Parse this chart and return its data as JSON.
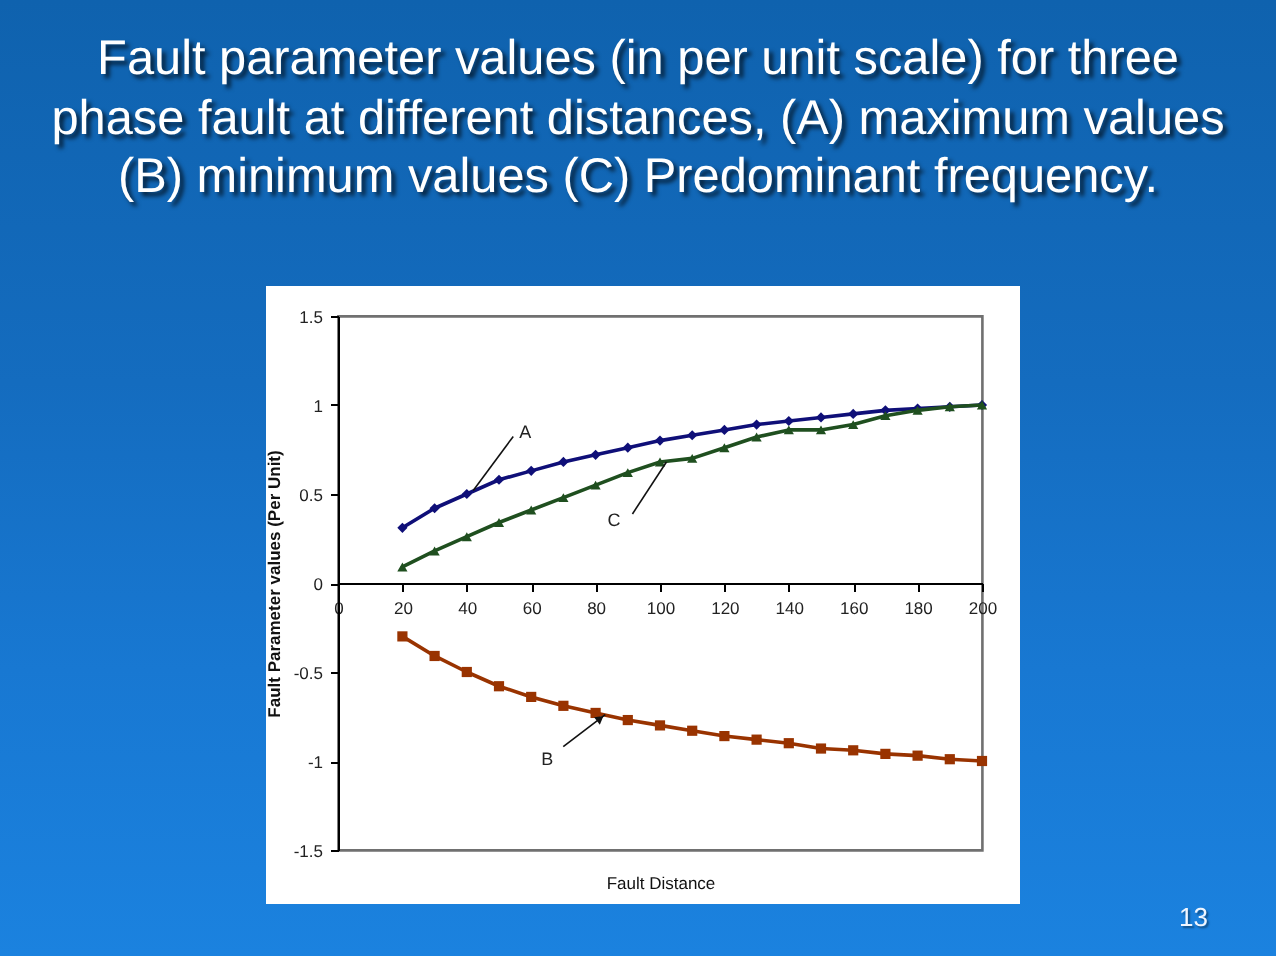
{
  "chart_data": {
    "type": "line",
    "title": "Fault parameter values (in per unit scale) for three phase fault at different distances, (A) maximum values (B) minimum values (C) Predominant frequency.",
    "xlabel": "Fault Distance",
    "ylabel": "Fault Parameter values (Per Unit)",
    "x": [
      20,
      30,
      40,
      50,
      60,
      70,
      80,
      90,
      100,
      110,
      120,
      130,
      140,
      150,
      160,
      170,
      180,
      190,
      200
    ],
    "series": [
      {
        "color": "#0f0f78",
        "marker": "diamond",
        "values": [
          0.31,
          0.42,
          0.5,
          0.58,
          0.63,
          0.68,
          0.72,
          0.76,
          0.8,
          0.83,
          0.86,
          0.89,
          0.91,
          0.93,
          0.95,
          0.97,
          0.98,
          0.99,
          1.0
        ]
      },
      {
        "color": "#993300",
        "marker": "square",
        "values": [
          -0.3,
          -0.41,
          -0.5,
          -0.58,
          -0.64,
          -0.69,
          -0.73,
          -0.77,
          -0.8,
          -0.83,
          -0.86,
          -0.88,
          -0.9,
          -0.93,
          -0.94,
          -0.96,
          -0.97,
          -0.99,
          -1.0
        ]
      },
      {
        "color": "#1f4f1f",
        "marker": "triangle",
        "values": [
          0.09,
          0.18,
          0.26,
          0.34,
          0.41,
          0.48,
          0.55,
          0.62,
          0.68,
          0.7,
          0.76,
          0.82,
          0.86,
          0.86,
          0.89,
          0.94,
          0.97,
          0.99,
          1.0
        ]
      }
    ],
    "xlim": [
      0,
      200
    ],
    "xticks": [
      0,
      20,
      40,
      60,
      80,
      100,
      120,
      140,
      160,
      180,
      200
    ],
    "ylim": [
      -1.5,
      1.5
    ],
    "yticks": [
      -1.5,
      -1,
      -0.5,
      0,
      0.5,
      1,
      1.5
    ],
    "annotations": [
      {
        "text": "A",
        "x": 42,
        "y": 0.52
      },
      {
        "text": "B",
        "x": 83,
        "y": -0.74
      },
      {
        "text": "C",
        "x": 102,
        "y": 0.68
      },
      "13"
    ]
  }
}
